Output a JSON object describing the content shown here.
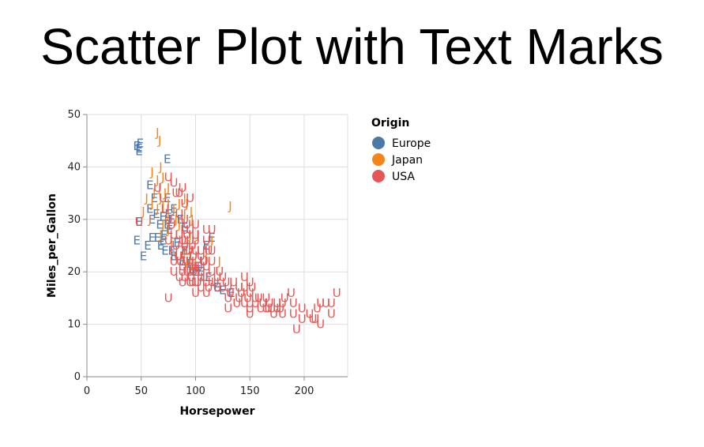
{
  "title": "Scatter Plot with Text Marks",
  "colors": {
    "Europe": "#4c78a8",
    "Japan": "#f58518",
    "USA": "#e45756",
    "grid": "#dddddd",
    "axis": "#888888"
  },
  "chart_data": {
    "type": "scatter",
    "xlabel": "Horsepower",
    "ylabel": "Miles_per_Gallon",
    "xlim": [
      0,
      240
    ],
    "ylim": [
      0,
      50
    ],
    "x_ticks": [
      0,
      50,
      100,
      150,
      200
    ],
    "y_ticks": [
      0,
      10,
      20,
      30,
      40,
      50
    ],
    "grid": true,
    "legend": {
      "title": "Origin",
      "placement": "right",
      "entries": [
        "Europe",
        "Japan",
        "USA"
      ]
    },
    "series": [
      {
        "name": "Europe",
        "text": "E",
        "points": [
          [
            46,
            44
          ],
          [
            48,
            43.5
          ],
          [
            49,
            44.5
          ],
          [
            48,
            43
          ],
          [
            74,
            41.5
          ],
          [
            58,
            36.5
          ],
          [
            62,
            34
          ],
          [
            58,
            32
          ],
          [
            48,
            29.5
          ],
          [
            67,
            29
          ],
          [
            70,
            30.5
          ],
          [
            74,
            29
          ],
          [
            75,
            31
          ],
          [
            76,
            28
          ],
          [
            71,
            27
          ],
          [
            60,
            26.5
          ],
          [
            46,
            26
          ],
          [
            52,
            23
          ],
          [
            56,
            25
          ],
          [
            65,
            26.5
          ],
          [
            68,
            25
          ],
          [
            70,
            26
          ],
          [
            72,
            24
          ],
          [
            78,
            24
          ],
          [
            80,
            23
          ],
          [
            83,
            25.5
          ],
          [
            88,
            22
          ],
          [
            90,
            24
          ],
          [
            95,
            21.5
          ],
          [
            97,
            20.5
          ],
          [
            100,
            20
          ],
          [
            102,
            21
          ],
          [
            105,
            20
          ],
          [
            110,
            25
          ],
          [
            112,
            19
          ],
          [
            115,
            26.5
          ],
          [
            120,
            17
          ],
          [
            125,
            16.5
          ],
          [
            133,
            16
          ],
          [
            78,
            30
          ],
          [
            80,
            32
          ],
          [
            74,
            34
          ],
          [
            86,
            30
          ],
          [
            90,
            28.5
          ],
          [
            64,
            31
          ],
          [
            60,
            30
          ]
        ]
      },
      {
        "name": "Japan",
        "text": "J",
        "points": [
          [
            65,
            46.5
          ],
          [
            67,
            45
          ],
          [
            68,
            40
          ],
          [
            60,
            39
          ],
          [
            65,
            37.5
          ],
          [
            70,
            38
          ],
          [
            67,
            36
          ],
          [
            62,
            35
          ],
          [
            68,
            34
          ],
          [
            75,
            36
          ],
          [
            72,
            35
          ],
          [
            75,
            33
          ],
          [
            60,
            33
          ],
          [
            52,
            31.5
          ],
          [
            58,
            30
          ],
          [
            65,
            32
          ],
          [
            70,
            32.5
          ],
          [
            75,
            31
          ],
          [
            80,
            32
          ],
          [
            85,
            33
          ],
          [
            90,
            34
          ],
          [
            92,
            33
          ],
          [
            96,
            31.5
          ],
          [
            97,
            30
          ],
          [
            95,
            27
          ],
          [
            88,
            26
          ],
          [
            90,
            24
          ],
          [
            92,
            22
          ],
          [
            95,
            23
          ],
          [
            97,
            21.5
          ],
          [
            100,
            22
          ],
          [
            110,
            24
          ],
          [
            115,
            26
          ],
          [
            122,
            22
          ],
          [
            132,
            32.5
          ],
          [
            75,
            28
          ],
          [
            78,
            25
          ],
          [
            70,
            29
          ],
          [
            85,
            29
          ],
          [
            90,
            31
          ],
          [
            55,
            34
          ],
          [
            82,
            30
          ],
          [
            68,
            27
          ],
          [
            102,
            27
          ]
        ]
      },
      {
        "name": "USA",
        "text": "U",
        "points": [
          [
            48,
            29.5
          ],
          [
            75,
            15
          ],
          [
            85,
            27
          ],
          [
            88,
            26
          ],
          [
            90,
            28
          ],
          [
            90,
            25
          ],
          [
            92,
            24
          ],
          [
            95,
            22
          ],
          [
            95,
            20
          ],
          [
            95,
            18
          ],
          [
            97,
            21
          ],
          [
            98,
            23
          ],
          [
            100,
            18
          ],
          [
            100,
            16
          ],
          [
            100,
            21
          ],
          [
            105,
            19
          ],
          [
            105,
            17
          ],
          [
            105,
            20
          ],
          [
            110,
            18
          ],
          [
            110,
            21
          ],
          [
            110,
            16
          ],
          [
            115,
            18
          ],
          [
            115,
            20
          ],
          [
            115,
            22
          ],
          [
            120,
            19
          ],
          [
            120,
            17
          ],
          [
            125,
            19
          ],
          [
            125,
            17
          ],
          [
            130,
            15
          ],
          [
            130,
            17
          ],
          [
            130,
            13
          ],
          [
            135,
            18
          ],
          [
            140,
            17
          ],
          [
            140,
            15
          ],
          [
            145,
            14
          ],
          [
            145,
            17
          ],
          [
            145,
            19
          ],
          [
            150,
            14
          ],
          [
            150,
            13
          ],
          [
            150,
            16
          ],
          [
            150,
            12
          ],
          [
            150,
            18
          ],
          [
            155,
            14
          ],
          [
            155,
            15
          ],
          [
            160,
            13
          ],
          [
            165,
            13
          ],
          [
            165,
            15
          ],
          [
            167,
            13
          ],
          [
            170,
            13
          ],
          [
            175,
            13
          ],
          [
            175,
            14
          ],
          [
            180,
            12
          ],
          [
            180,
            14
          ],
          [
            190,
            12
          ],
          [
            190,
            14
          ],
          [
            193,
            9
          ],
          [
            198,
            11
          ],
          [
            198,
            13
          ],
          [
            208,
            11
          ],
          [
            210,
            11
          ],
          [
            215,
            10
          ],
          [
            215,
            14
          ],
          [
            220,
            14
          ],
          [
            225,
            14
          ],
          [
            225,
            12
          ],
          [
            230,
            16
          ],
          [
            75,
            26
          ],
          [
            80,
            24
          ],
          [
            80,
            22
          ],
          [
            80,
            20
          ],
          [
            85,
            23
          ],
          [
            85,
            19
          ],
          [
            88,
            21
          ],
          [
            88,
            18
          ],
          [
            90,
            30
          ],
          [
            90,
            19
          ],
          [
            92,
            20
          ],
          [
            92,
            22
          ],
          [
            95,
            26
          ],
          [
            95,
            28
          ],
          [
            97,
            25
          ],
          [
            97,
            18
          ],
          [
            100,
            27
          ],
          [
            100,
            24
          ],
          [
            100,
            26
          ],
          [
            105,
            24
          ],
          [
            105,
            23
          ],
          [
            107,
            22
          ],
          [
            110,
            26
          ],
          [
            110,
            28
          ],
          [
            112,
            24
          ],
          [
            115,
            28
          ],
          [
            115,
            24
          ],
          [
            85,
            31
          ],
          [
            90,
            33
          ],
          [
            92,
            29
          ],
          [
            88,
            36
          ],
          [
            95,
            34
          ],
          [
            100,
            29
          ],
          [
            85,
            35
          ],
          [
            65,
            36
          ],
          [
            70,
            34
          ],
          [
            72,
            32
          ],
          [
            75,
            30
          ],
          [
            78,
            29
          ],
          [
            80,
            27
          ],
          [
            82,
            25
          ],
          [
            84,
            23
          ],
          [
            86,
            22
          ],
          [
            88,
            20
          ],
          [
            90,
            26
          ],
          [
            92,
            27
          ],
          [
            94,
            24
          ],
          [
            96,
            19
          ],
          [
            98,
            20
          ],
          [
            102,
            18
          ],
          [
            103,
            21
          ],
          [
            108,
            22
          ],
          [
            108,
            19
          ],
          [
            112,
            17
          ],
          [
            118,
            18
          ],
          [
            122,
            20
          ],
          [
            128,
            18
          ],
          [
            132,
            16
          ],
          [
            138,
            14
          ],
          [
            142,
            16
          ],
          [
            148,
            15
          ],
          [
            152,
            17
          ],
          [
            158,
            15
          ],
          [
            162,
            14
          ],
          [
            168,
            14
          ],
          [
            172,
            12
          ],
          [
            178,
            13
          ],
          [
            182,
            15
          ],
          [
            188,
            16
          ],
          [
            205,
            12
          ],
          [
            212,
            13
          ],
          [
            80,
            37
          ],
          [
            75,
            38
          ],
          [
            82,
            35
          ]
        ]
      }
    ]
  }
}
